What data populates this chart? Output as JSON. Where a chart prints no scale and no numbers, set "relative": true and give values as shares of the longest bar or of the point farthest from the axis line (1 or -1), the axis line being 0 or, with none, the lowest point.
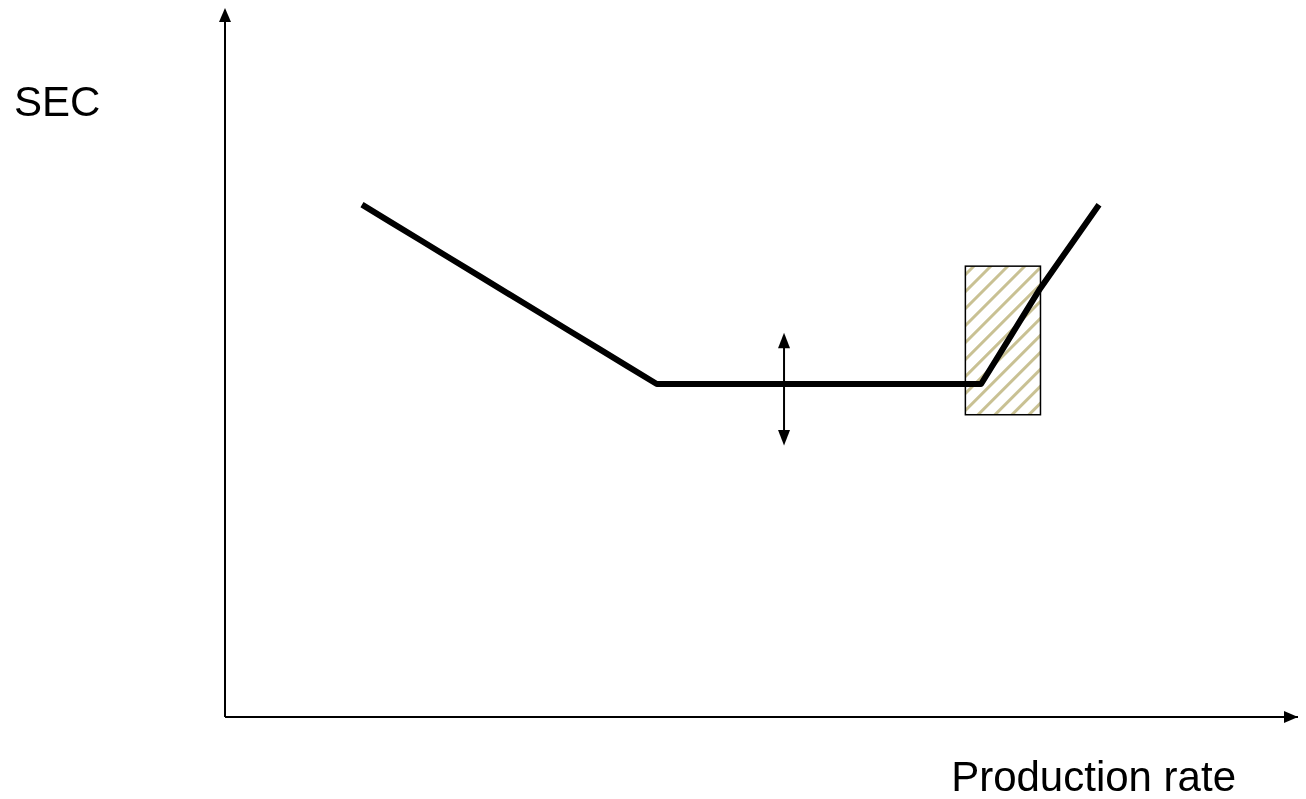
{
  "chart_data": {
    "type": "line",
    "relative": true,
    "xlabel": "Production rate",
    "annotations": [
      "SEC"
    ],
    "grid": false,
    "legend": false,
    "marker": "none",
    "line_style": "solid",
    "categories": [
      null,
      null,
      null,
      null,
      null,
      null,
      null,
      null,
      null,
      null,
      null,
      null,
      null,
      null,
      null,
      null,
      null,
      null,
      null,
      null,
      null,
      null,
      null,
      null,
      null,
      null
    ],
    "series": [
      {
        "color": "#000000",
        "values": [
          1,
          0.965,
          0.93,
          0.895,
          0.86,
          0.825,
          0.79,
          0.755,
          0.72,
          0.685,
          0.65,
          0.65,
          0.65,
          0.65,
          0.65,
          0.65,
          0.65,
          0.65,
          0.65,
          0.65,
          0.65,
          0.65,
          0.743,
          0.836,
          0.918,
          1
        ]
      }
    ]
  }
}
